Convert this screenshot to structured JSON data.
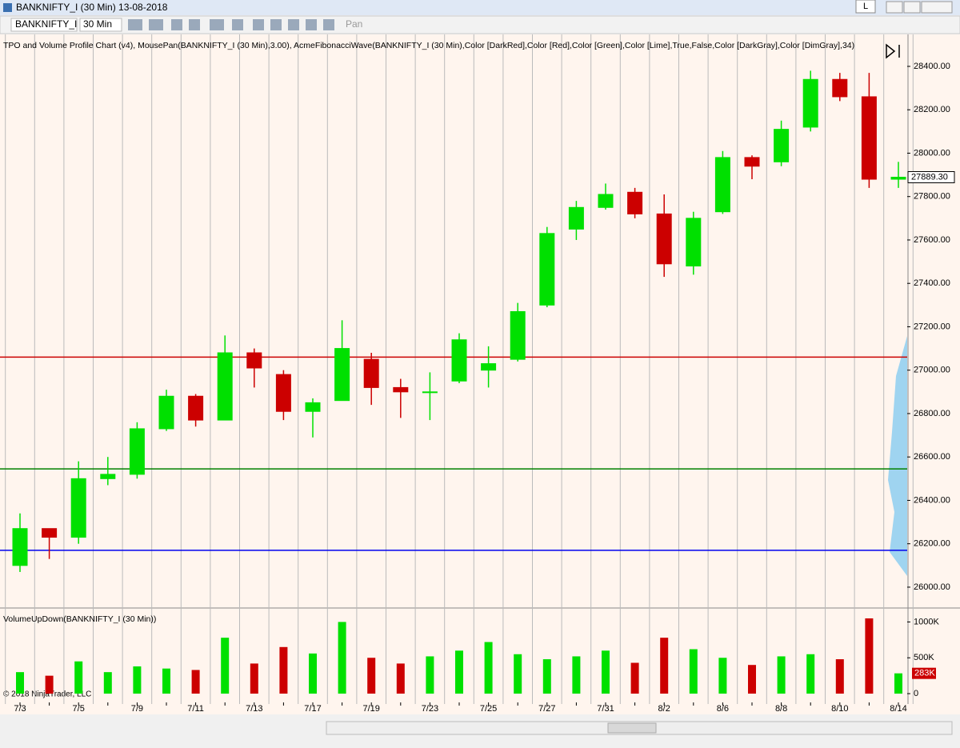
{
  "window": {
    "title": "BANKNIFTY_I (30 Min)  13-08-2018",
    "layout_button": "L"
  },
  "toolbar": {
    "instrument": "BANKNIFTY_I",
    "interval": "30 Min",
    "pan": "Pan"
  },
  "copyright": "© 2018 NinjaTrader, LLC",
  "chart_data": [
    {
      "type": "candlestick",
      "title": "TPO and Volume Profile Chart (v4), MousePan(BANKNIFTY_I (30 Min),3.00), AcmeFibonacciWave(BANKNIFTY_I (30 Min),Color [DarkRed],Color [Red],Color [Green],Color [Lime],True,False,Color [DarkGray],Color [DimGray],34)",
      "open": [
        26100,
        26270,
        26230,
        26500,
        26520,
        26730,
        26880,
        26770,
        27080,
        26980,
        26810,
        26860,
        27050,
        26920,
        26900,
        26950,
        27000,
        27050,
        27300,
        27650,
        27750,
        27820,
        27720,
        27480,
        27730,
        27980,
        27960,
        28120,
        28340,
        28260,
        27880
      ],
      "high": [
        26340,
        26250,
        26580,
        26600,
        26760,
        26910,
        26890,
        27160,
        27100,
        27000,
        26870,
        27230,
        27080,
        26960,
        26990,
        27170,
        27110,
        27310,
        27660,
        27780,
        27860,
        27840,
        27810,
        27730,
        28010,
        27990,
        28150,
        28380,
        28370,
        28370,
        27960
      ],
      "low": [
        26070,
        26130,
        26200,
        26470,
        26500,
        26720,
        26740,
        26770,
        26920,
        26770,
        26690,
        26860,
        26840,
        26780,
        26770,
        26940,
        26920,
        27040,
        27290,
        27600,
        27740,
        27700,
        27430,
        27440,
        27720,
        27880,
        27940,
        28100,
        28240,
        27840,
        27840
      ],
      "close": [
        26270,
        26230,
        26500,
        26520,
        26730,
        26880,
        26770,
        27080,
        27010,
        26810,
        26850,
        27100,
        26920,
        26900,
        26900,
        27140,
        27030,
        27270,
        27630,
        27750,
        27810,
        27720,
        27490,
        27700,
        27980,
        27940,
        28110,
        28340,
        28260,
        27880,
        27889.3
      ],
      "up_color": "#00e000",
      "down_color": "#cc0000",
      "ylim": [
        25915,
        28540
      ],
      "yticks": [
        {
          "value": 26000,
          "label": "26000.00"
        },
        {
          "value": 26200,
          "label": "26200.00"
        },
        {
          "value": 26400,
          "label": "26400.00"
        },
        {
          "value": 26600,
          "label": "26600.00"
        },
        {
          "value": 26800,
          "label": "26800.00"
        },
        {
          "value": 27000,
          "label": "27000.00"
        },
        {
          "value": 27200,
          "label": "27200.00"
        },
        {
          "value": 27400,
          "label": "27400.00"
        },
        {
          "value": 27600,
          "label": "27600.00"
        },
        {
          "value": 27800,
          "label": "27800.00"
        },
        {
          "value": 28000,
          "label": "28000.00"
        },
        {
          "value": 28200,
          "label": "28200.00"
        },
        {
          "value": 28400,
          "label": "28400.00"
        }
      ],
      "lines": [
        {
          "value": 27060,
          "color": "#cc0000"
        },
        {
          "value": 26545,
          "color": "#008000"
        },
        {
          "value": 26170,
          "color": "#0000ee"
        }
      ],
      "last_price": {
        "value": 27889.3,
        "label": "27889.30"
      }
    },
    {
      "type": "bar",
      "title": "VolumeUpDown(BANKNIFTY_I (30 Min))",
      "categories": [
        "7/3",
        null,
        "7/5",
        null,
        "7/9",
        null,
        "7/11",
        null,
        "7/13",
        null,
        "7/17",
        null,
        "7/19",
        null,
        "7/23",
        null,
        "7/25",
        null,
        "7/27",
        null,
        "7/31",
        null,
        "8/2",
        null,
        "8/6",
        null,
        "8/8",
        null,
        "8/10",
        null,
        "8/14"
      ],
      "values": [
        300000,
        250000,
        450000,
        300000,
        380000,
        350000,
        330000,
        780000,
        420000,
        650000,
        560000,
        1000000,
        500000,
        420000,
        520000,
        600000,
        720000,
        550000,
        480000,
        520000,
        600000,
        430000,
        780000,
        620000,
        500000,
        400000,
        520000,
        550000,
        480000,
        1050000,
        283000
      ],
      "ylim": [
        -100000,
        1150000
      ],
      "yticks": [
        0,
        {
          "value": 500000,
          "label": "500K"
        },
        {
          "value": 1000000,
          "label": "1000K"
        }
      ],
      "last_value": {
        "value": 283000,
        "label": "283K"
      }
    }
  ]
}
